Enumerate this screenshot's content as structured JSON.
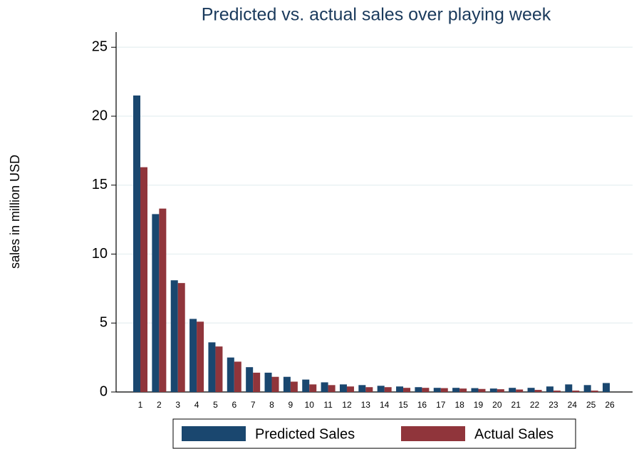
{
  "chart_data": {
    "type": "bar",
    "title": "Predicted vs. actual sales over playing week",
    "y_label": "sales in million USD",
    "categories": [
      "1",
      "2",
      "3",
      "4",
      "5",
      "6",
      "7",
      "8",
      "9",
      "10",
      "11",
      "12",
      "13",
      "14",
      "15",
      "16",
      "17",
      "18",
      "19",
      "20",
      "21",
      "22",
      "23",
      "24",
      "25",
      "26"
    ],
    "series": [
      {
        "name": "Predicted Sales",
        "color": "#1a476f",
        "values": [
          21.5,
          12.9,
          8.1,
          5.3,
          3.6,
          2.5,
          1.8,
          1.4,
          1.1,
          0.9,
          0.7,
          0.55,
          0.5,
          0.45,
          0.4,
          0.35,
          0.3,
          0.3,
          0.28,
          0.25,
          0.3,
          0.3,
          0.4,
          0.55,
          0.5,
          0.65
        ]
      },
      {
        "name": "Actual Sales",
        "color": "#90353b",
        "values": [
          16.3,
          13.3,
          7.9,
          5.1,
          3.3,
          2.2,
          1.4,
          1.1,
          0.75,
          0.55,
          0.5,
          0.4,
          0.35,
          0.35,
          0.3,
          0.3,
          0.28,
          0.25,
          0.22,
          0.2,
          0.18,
          0.15,
          0.1,
          0.1,
          0.1,
          null
        ]
      }
    ],
    "ylim": [
      0,
      26.1
    ],
    "yticks": [
      0,
      5,
      10,
      15,
      20,
      25
    ],
    "grid": true,
    "legend": "bottom"
  }
}
